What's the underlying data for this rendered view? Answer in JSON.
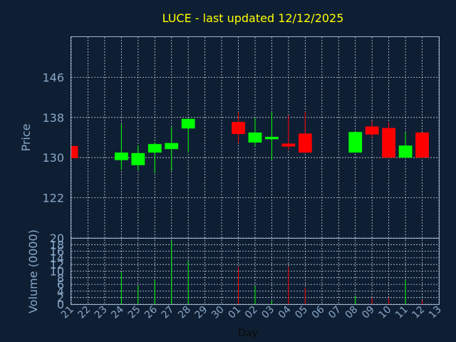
{
  "chart_data": {
    "type": "candlestick",
    "title": "LUCE - last updated 12/12/2025",
    "ylabel": "Price",
    "volume_label": "Volume (0000)",
    "xlabel": "Day",
    "ylim": [
      114,
      154
    ],
    "vol_ylim": [
      0,
      20
    ],
    "yticks": [
      122,
      130,
      138,
      146
    ],
    "vol_yticks": [
      0,
      2,
      4,
      6,
      8,
      10,
      12,
      14,
      16,
      18,
      20
    ],
    "x_ticks": [
      "21",
      "22",
      "23",
      "24",
      "25",
      "26",
      "27",
      "28",
      "29",
      "30",
      "01",
      "02",
      "03",
      "04",
      "05",
      "06",
      "07",
      "08",
      "09",
      "10",
      "11",
      "12",
      "13"
    ],
    "grid": true,
    "colors": {
      "up": "#00ff00",
      "down": "#ff0000",
      "title": "#ffff00",
      "axis": "#8aa8c8",
      "frame": "#9fb2c8"
    },
    "candles": [
      {
        "x": 0,
        "open": 132.3,
        "high": 132.3,
        "low": 129.9,
        "close": 129.9,
        "volume": 0
      },
      {
        "x": 3,
        "open": 129.5,
        "high": 136.7,
        "low": 127.6,
        "close": 131.0,
        "volume": 9.7
      },
      {
        "x": 4,
        "open": 128.5,
        "high": 132.4,
        "low": 127.5,
        "close": 130.9,
        "volume": 5.6
      },
      {
        "x": 5,
        "open": 131.0,
        "high": 133.0,
        "low": 126.9,
        "close": 132.7,
        "volume": 7.2
      },
      {
        "x": 6,
        "open": 131.7,
        "high": 136.1,
        "low": 127.4,
        "close": 132.9,
        "volume": 19.2
      },
      {
        "x": 7,
        "open": 135.8,
        "high": 137.8,
        "low": 131.0,
        "close": 137.7,
        "volume": 13.1
      },
      {
        "x": 10,
        "open": 137.1,
        "high": 139.0,
        "low": 132.9,
        "close": 134.7,
        "volume": 11.2
      },
      {
        "x": 11,
        "open": 133.0,
        "high": 137.9,
        "low": 132.3,
        "close": 135.0,
        "volume": 5.5
      },
      {
        "x": 12,
        "open": 133.8,
        "high": 139.0,
        "low": 129.6,
        "close": 134.0,
        "volume": 1.0
      },
      {
        "x": 13,
        "open": 132.8,
        "high": 138.4,
        "low": 131.5,
        "close": 132.2,
        "volume": 11.3
      },
      {
        "x": 14,
        "open": 134.8,
        "high": 139.1,
        "low": 130.9,
        "close": 131.0,
        "volume": 5.0
      },
      {
        "x": 17,
        "open": 131.0,
        "high": 135.2,
        "low": 131.0,
        "close": 135.1,
        "volume": 2.6
      },
      {
        "x": 18,
        "open": 136.2,
        "high": 137.3,
        "low": 134.0,
        "close": 134.6,
        "volume": 2.0
      },
      {
        "x": 19,
        "open": 135.9,
        "high": 137.0,
        "low": 129.9,
        "close": 130.0,
        "volume": 2.0
      },
      {
        "x": 20,
        "open": 130.0,
        "high": 135.0,
        "low": 129.8,
        "close": 132.4,
        "volume": 7.3
      },
      {
        "x": 21,
        "open": 135.0,
        "high": 135.0,
        "low": 129.9,
        "close": 130.0,
        "volume": 1.2
      }
    ]
  }
}
